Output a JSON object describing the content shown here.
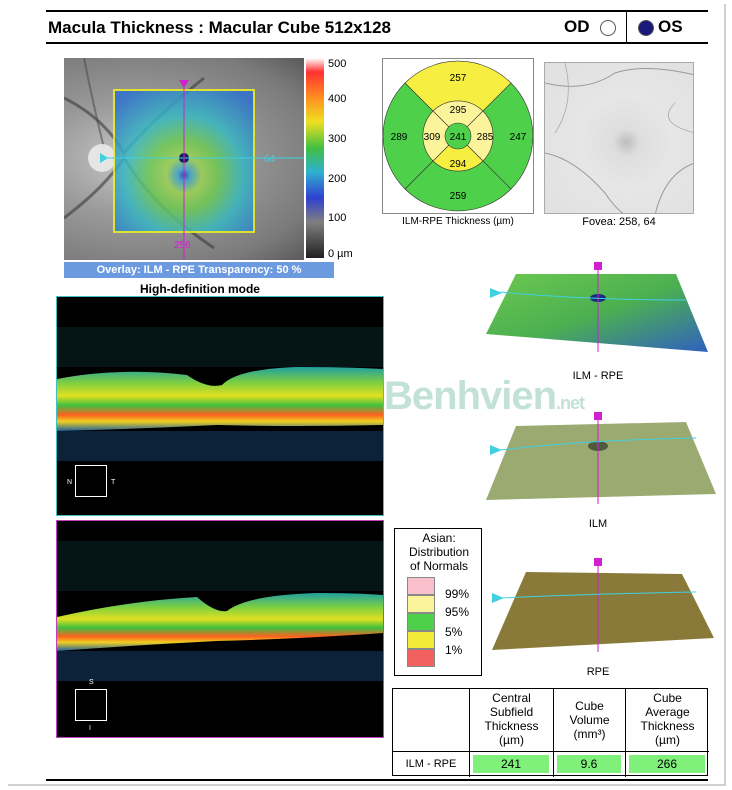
{
  "header": {
    "title": "Macula Thickness : Macular Cube 512x128",
    "od_label": "OD",
    "os_label": "OS"
  },
  "fundus": {
    "overlay_caption": "Overlay: ILM - RPE  Transparency: 50 %",
    "scan_row": "64",
    "scan_col": "256",
    "colorbar_labels": [
      "500",
      "400",
      "300",
      "200",
      "100",
      "0 µm"
    ]
  },
  "bscan": {
    "mode_label": "High-definition mode",
    "scan1_dir_left": "N",
    "scan1_dir_right": "T",
    "scan2_dir_top": "S",
    "scan2_dir_bottom": "I"
  },
  "etdrs_grid": {
    "caption": "ILM-RPE Thickness (µm)",
    "outer_superior": "257",
    "inner_superior": "295",
    "outer_nasal": "289",
    "inner_nasal": "309",
    "central": "241",
    "inner_temporal": "285",
    "outer_temporal": "247",
    "inner_inferior": "294",
    "outer_inferior": "259"
  },
  "fovea": {
    "caption": "Fovea: 258, 64"
  },
  "surfaces": {
    "ilm_rpe_label": "ILM - RPE",
    "ilm_label": "ILM",
    "rpe_label": "RPE"
  },
  "watermark": {
    "text": "Benhvien",
    "suffix": ".net"
  },
  "legend": {
    "title_lines": [
      "Asian:",
      "Distribution",
      "of Normals"
    ],
    "levels": [
      {
        "label": "99%",
        "color": "#f9c0cc"
      },
      {
        "label": "95%",
        "color": "#fbf49a"
      },
      {
        "label": "5%",
        "color": "#4ed04a"
      },
      {
        "label": "1%",
        "color": "#f2ec38"
      },
      {
        "label": "",
        "color": "#f26060"
      }
    ]
  },
  "table": {
    "headers": [
      [
        "Central",
        "Subfield",
        "Thickness",
        "(µm)"
      ],
      [
        "Cube",
        "Volume",
        "(mm³)"
      ],
      [
        "Cube",
        "Average",
        "Thickness",
        "(µm)"
      ]
    ],
    "row_label": "ILM - RPE",
    "values": [
      "241",
      "9.6",
      "266"
    ]
  },
  "colors": {
    "overlay_bar": "#6b9ae0",
    "cell_normal": "#7ff07a",
    "scan_line_h": "#40d0e0",
    "scan_line_v": "#d020d0"
  }
}
